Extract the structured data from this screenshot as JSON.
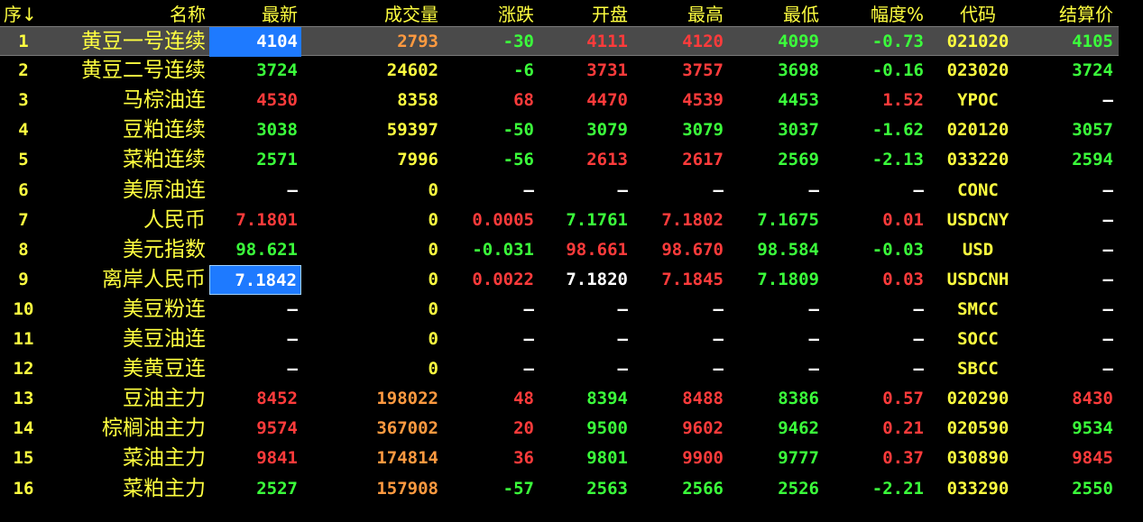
{
  "colors": {
    "background": "#000000",
    "header": "#ffff40",
    "up": "#ff3b3b",
    "down": "#3bff3b",
    "flat": "#ffffff",
    "volume": "#ffff40",
    "volume_alt": "#ff9a40",
    "code": "#ffff40",
    "highlight": "#1e7aff"
  },
  "header": {
    "seq": "序",
    "sort_icon": "↓",
    "name": "名称",
    "last": "最新",
    "volume": "成交量",
    "change": "涨跌",
    "open": "开盘",
    "high": "最高",
    "low": "最低",
    "pct": "幅度%",
    "code": "代码",
    "settle": "结算价"
  },
  "rows": [
    {
      "seq": "1",
      "name": "黄豆一号连续",
      "last": "4104",
      "volume": "2793",
      "change": "-30",
      "open": "4111",
      "high": "4120",
      "low": "4099",
      "pct": "-0.73",
      "code": "021020",
      "settle": "4105"
    },
    {
      "seq": "2",
      "name": "黄豆二号连续",
      "last": "3724",
      "volume": "24602",
      "change": "-6",
      "open": "3731",
      "high": "3757",
      "low": "3698",
      "pct": "-0.16",
      "code": "023020",
      "settle": "3724"
    },
    {
      "seq": "3",
      "name": "马棕油连",
      "last": "4530",
      "volume": "8358",
      "change": "68",
      "open": "4470",
      "high": "4539",
      "low": "4453",
      "pct": "1.52",
      "code": "YPOC",
      "settle": "—"
    },
    {
      "seq": "4",
      "name": "豆粕连续",
      "last": "3038",
      "volume": "59397",
      "change": "-50",
      "open": "3079",
      "high": "3079",
      "low": "3037",
      "pct": "-1.62",
      "code": "020120",
      "settle": "3057"
    },
    {
      "seq": "5",
      "name": "菜粕连续",
      "last": "2571",
      "volume": "7996",
      "change": "-56",
      "open": "2613",
      "high": "2617",
      "low": "2569",
      "pct": "-2.13",
      "code": "033220",
      "settle": "2594"
    },
    {
      "seq": "6",
      "name": "美原油连",
      "last": "—",
      "volume": "0",
      "change": "—",
      "open": "—",
      "high": "—",
      "low": "—",
      "pct": "—",
      "code": "CONC",
      "settle": "—"
    },
    {
      "seq": "7",
      "name": "人民币",
      "last": "7.1801",
      "volume": "0",
      "change": "0.0005",
      "open": "7.1761",
      "high": "7.1802",
      "low": "7.1675",
      "pct": "0.01",
      "code": "USDCNY",
      "settle": "—"
    },
    {
      "seq": "8",
      "name": "美元指数",
      "last": "98.621",
      "volume": "0",
      "change": "-0.031",
      "open": "98.661",
      "high": "98.670",
      "low": "98.584",
      "pct": "-0.03",
      "code": "USD",
      "settle": "—"
    },
    {
      "seq": "9",
      "name": "离岸人民币",
      "last": "7.1842",
      "volume": "0",
      "change": "0.0022",
      "open": "7.1820",
      "high": "7.1845",
      "low": "7.1809",
      "pct": "0.03",
      "code": "USDCNH",
      "settle": "—"
    },
    {
      "seq": "10",
      "name": "美豆粉连",
      "last": "—",
      "volume": "0",
      "change": "—",
      "open": "—",
      "high": "—",
      "low": "—",
      "pct": "—",
      "code": "SMCC",
      "settle": "—"
    },
    {
      "seq": "11",
      "name": "美豆油连",
      "last": "—",
      "volume": "0",
      "change": "—",
      "open": "—",
      "high": "—",
      "low": "—",
      "pct": "—",
      "code": "SOCC",
      "settle": "—"
    },
    {
      "seq": "12",
      "name": "美黄豆连",
      "last": "—",
      "volume": "0",
      "change": "—",
      "open": "—",
      "high": "—",
      "low": "—",
      "pct": "—",
      "code": "SBCC",
      "settle": "—"
    },
    {
      "seq": "13",
      "name": "豆油主力",
      "last": "8452",
      "volume": "198022",
      "change": "48",
      "open": "8394",
      "high": "8488",
      "low": "8386",
      "pct": "0.57",
      "code": "020290",
      "settle": "8430"
    },
    {
      "seq": "14",
      "name": "棕榈油主力",
      "last": "9574",
      "volume": "367002",
      "change": "20",
      "open": "9500",
      "high": "9602",
      "low": "9462",
      "pct": "0.21",
      "code": "020590",
      "settle": "9534"
    },
    {
      "seq": "15",
      "name": "菜油主力",
      "last": "9841",
      "volume": "174814",
      "change": "36",
      "open": "9801",
      "high": "9900",
      "low": "9777",
      "pct": "0.37",
      "code": "030890",
      "settle": "9845"
    },
    {
      "seq": "16",
      "name": "菜粕主力",
      "last": "2527",
      "volume": "157908",
      "change": "-57",
      "open": "2563",
      "high": "2566",
      "low": "2526",
      "pct": "-2.21",
      "code": "033290",
      "settle": "2550"
    }
  ]
}
